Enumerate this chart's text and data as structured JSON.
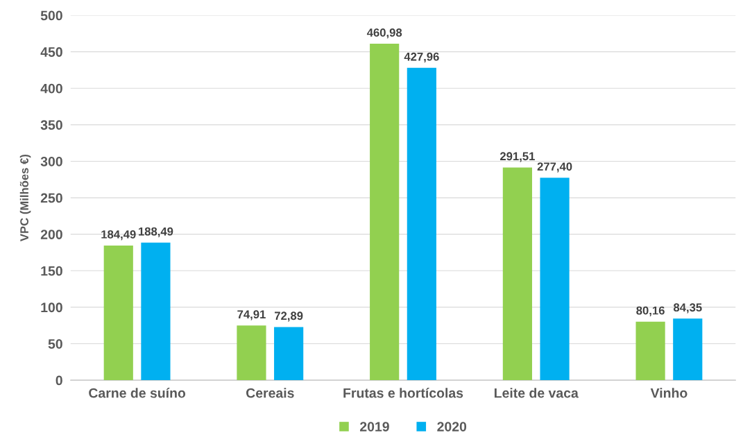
{
  "chart_data": {
    "type": "bar",
    "ylabel": "VPC (Milhões €)",
    "categories": [
      "Carne de suíno",
      "Cereais",
      "Frutas e hortícolas",
      "Leite de vaca",
      "Vinho"
    ],
    "series": [
      {
        "name": "2019",
        "color": "#92d050",
        "values": [
          184.49,
          74.91,
          460.98,
          291.51,
          80.16
        ],
        "value_labels": [
          "184,49",
          "74,91",
          "460,98",
          "291,51",
          "80,16"
        ]
      },
      {
        "name": "2020",
        "color": "#00b0f0",
        "values": [
          188.49,
          72.89,
          427.96,
          277.4,
          84.35
        ],
        "value_labels": [
          "188,49",
          "72,89",
          "427,96",
          "277,40",
          "84,35"
        ]
      }
    ],
    "ylim": [
      0,
      500
    ],
    "yticks": [
      0,
      50,
      100,
      150,
      200,
      250,
      300,
      350,
      400,
      450,
      500
    ],
    "grid": "y",
    "legend": "bottom"
  }
}
